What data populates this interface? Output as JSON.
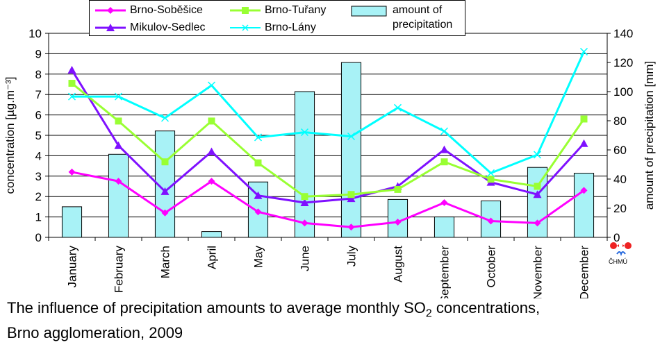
{
  "chart_data": {
    "type": "bar",
    "categories": [
      "January",
      "February",
      "March",
      "April",
      "May",
      "June",
      "July",
      "August",
      "September",
      "October",
      "November",
      "December"
    ],
    "ylabel": "concentration  [µg.m⁻³]",
    "ylabel_right": "amount of precipitation [mm]",
    "ylim": [
      0,
      10
    ],
    "ylim_right": [
      0,
      140
    ],
    "yticks": [
      0,
      1,
      2,
      3,
      4,
      5,
      6,
      7,
      8,
      9,
      10
    ],
    "yticks_right": [
      0,
      20,
      40,
      60,
      80,
      100,
      120,
      140
    ],
    "bars": {
      "name": "amount of precipitation",
      "color": "#a8f2f6",
      "values": [
        21,
        57,
        73,
        4,
        38,
        100,
        120,
        26,
        14,
        25,
        48,
        44
      ]
    },
    "series": [
      {
        "name": "Brno-Soběšice",
        "color": "#ff00ff",
        "marker": "diamond",
        "values": [
          3.2,
          2.75,
          1.2,
          2.75,
          1.25,
          0.7,
          0.5,
          0.75,
          1.7,
          0.8,
          0.7,
          2.3
        ]
      },
      {
        "name": "Mikulov-Sedlec",
        "color": "#7f10ff",
        "marker": "triangle",
        "values": [
          8.2,
          4.5,
          2.25,
          4.2,
          2.05,
          1.7,
          1.9,
          2.5,
          4.3,
          2.7,
          2.1,
          4.6
        ]
      },
      {
        "name": "Brno-Tuřany",
        "color": "#99ff33",
        "marker": "square",
        "values": [
          7.55,
          5.7,
          3.7,
          5.7,
          3.65,
          2.0,
          2.1,
          2.35,
          3.7,
          2.85,
          2.5,
          5.8
        ]
      },
      {
        "name": "Brno-Lány",
        "color": "#00ffff",
        "marker": "x",
        "values": [
          6.9,
          6.9,
          5.85,
          7.45,
          4.9,
          5.15,
          4.95,
          6.35,
          5.2,
          3.15,
          4.05,
          9.1
        ]
      }
    ],
    "grid": true,
    "legend_position": "top",
    "legend_labels": {
      "s1": "Brno-Soběšice",
      "s2": "Mikulov-Sedlec",
      "s3": "Brno-Tuřany",
      "s4": "Brno-Lány",
      "bars": "amount of\nprecipitation"
    }
  },
  "caption": {
    "line1_a": "The influence of precipitation amounts to average monthly SO",
    "line1_sub": "2",
    "line1_b": " concentrations,",
    "line2": "Brno agglomeration, 2009"
  },
  "logo": {
    "text": "ČHMÚ"
  }
}
